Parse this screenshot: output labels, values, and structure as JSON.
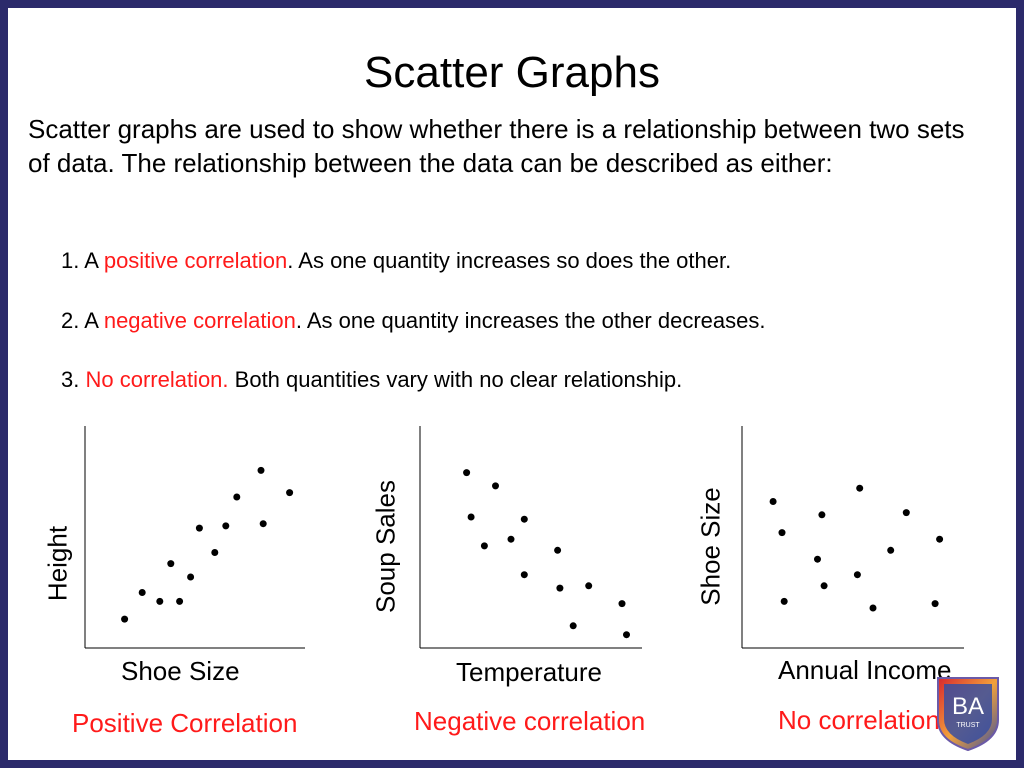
{
  "slide": {
    "title": "Scatter Graphs",
    "intro": "Scatter graphs are used to show whether there is a relationship between two sets of data. The relationship between the data can be described as either:",
    "items": [
      {
        "num": "1. A ",
        "highlight": "positive correlation",
        "rest": ". As one quantity increases so does the other."
      },
      {
        "num": "2. A ",
        "highlight": "negative correlation",
        "rest": ". As one quantity increases the other decreases."
      },
      {
        "num": "3. ",
        "highlight": "No correlation.",
        "rest": " Both quantities vary with no clear relationship."
      }
    ],
    "logo_text": "BA",
    "logo_subtext": "TRUST",
    "colors": {
      "border": "#2b2a6b",
      "highlight": "#ff1a1a",
      "logo_red": "#d9272e",
      "logo_blue": "#3a4fa0"
    }
  },
  "chart_data": [
    {
      "type": "scatter",
      "xlabel": "Shoe Size",
      "ylabel": "Height",
      "caption": "Positive Correlation",
      "xlim": [
        0,
        10
      ],
      "ylim": [
        0,
        10
      ],
      "points": [
        [
          1.8,
          1.3
        ],
        [
          2.6,
          2.5
        ],
        [
          3.4,
          2.1
        ],
        [
          4.3,
          2.1
        ],
        [
          3.9,
          3.8
        ],
        [
          4.8,
          3.2
        ],
        [
          5.2,
          5.4
        ],
        [
          5.9,
          4.3
        ],
        [
          6.4,
          5.5
        ],
        [
          6.9,
          6.8
        ],
        [
          8.0,
          8.0
        ],
        [
          8.1,
          5.6
        ],
        [
          9.3,
          7.0
        ]
      ]
    },
    {
      "type": "scatter",
      "xlabel": "Temperature",
      "ylabel": "Soup Sales",
      "caption": "Negative correlation",
      "xlim": [
        0,
        10
      ],
      "ylim": [
        0,
        10
      ],
      "points": [
        [
          2.1,
          7.9
        ],
        [
          2.3,
          5.9
        ],
        [
          2.9,
          4.6
        ],
        [
          3.4,
          7.3
        ],
        [
          4.1,
          4.9
        ],
        [
          4.7,
          5.8
        ],
        [
          4.7,
          3.3
        ],
        [
          6.2,
          4.4
        ],
        [
          6.3,
          2.7
        ],
        [
          6.9,
          1.0
        ],
        [
          7.6,
          2.8
        ],
        [
          9.1,
          2.0
        ],
        [
          9.3,
          0.6
        ]
      ]
    },
    {
      "type": "scatter",
      "xlabel": "Annual Income",
      "ylabel": "Shoe Size",
      "caption": "No correlation",
      "xlim": [
        0,
        10
      ],
      "ylim": [
        0,
        10
      ],
      "points": [
        [
          1.4,
          6.6
        ],
        [
          1.8,
          5.2
        ],
        [
          1.9,
          2.1
        ],
        [
          3.4,
          4.0
        ],
        [
          3.7,
          2.8
        ],
        [
          3.6,
          6.0
        ],
        [
          5.2,
          3.3
        ],
        [
          5.3,
          7.2
        ],
        [
          5.9,
          1.8
        ],
        [
          6.7,
          4.4
        ],
        [
          7.4,
          6.1
        ],
        [
          8.7,
          2.0
        ],
        [
          8.9,
          4.9
        ]
      ]
    }
  ]
}
